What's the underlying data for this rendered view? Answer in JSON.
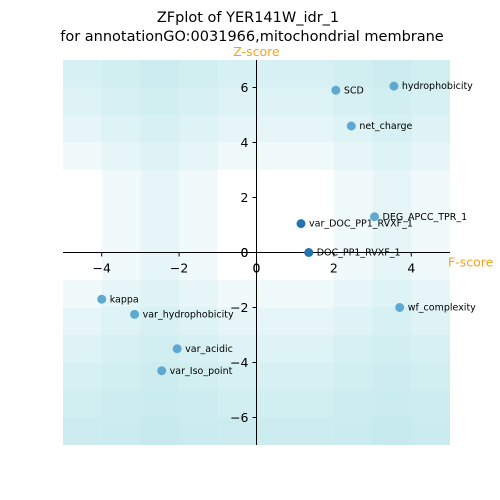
{
  "chart_data": {
    "type": "scatter",
    "title": "ZFplot of YER141W_idr_1",
    "subtitle": "for annotationGO:0031966,mitochondrial membrane",
    "xlabel": "F-score",
    "ylabel": "Z-score",
    "xlim": [
      -5,
      5
    ],
    "ylim": [
      -7,
      7
    ],
    "x_ticks": [
      -4,
      -2,
      0,
      2,
      4
    ],
    "y_ticks": [
      -6,
      -4,
      -2,
      0,
      2,
      4,
      6
    ],
    "grid": false,
    "colors": {
      "point": "#5fa8cf",
      "point_dark": "#2474b0",
      "band": "#bfe6ee",
      "axis_label": "#f5a21a"
    },
    "bands": [
      {
        "x": [
          -5,
          5
        ],
        "y": [
          3,
          7
        ]
      },
      {
        "x": [
          -5,
          5
        ],
        "y": [
          4,
          7
        ]
      },
      {
        "x": [
          -5,
          5
        ],
        "y": [
          5,
          7
        ]
      },
      {
        "x": [
          -5,
          5
        ],
        "y": [
          6,
          7
        ]
      },
      {
        "x": [
          -4,
          -1
        ],
        "y": [
          0,
          7
        ]
      },
      {
        "x": [
          -3,
          -2
        ],
        "y": [
          0,
          7
        ]
      },
      {
        "x": [
          2,
          5
        ],
        "y": [
          0,
          7
        ]
      },
      {
        "x": [
          3,
          4
        ],
        "y": [
          0,
          7
        ]
      },
      {
        "x": [
          -5,
          5
        ],
        "y": [
          -7,
          -1
        ]
      },
      {
        "x": [
          -5,
          5
        ],
        "y": [
          -7,
          -2
        ]
      },
      {
        "x": [
          -5,
          5
        ],
        "y": [
          -7,
          -3
        ]
      },
      {
        "x": [
          -5,
          5
        ],
        "y": [
          -7,
          -4
        ]
      },
      {
        "x": [
          -5,
          5
        ],
        "y": [
          -7,
          -5
        ]
      },
      {
        "x": [
          -5,
          5
        ],
        "y": [
          -7,
          -6
        ]
      },
      {
        "x": [
          -4,
          -1
        ],
        "y": [
          -7,
          0
        ]
      },
      {
        "x": [
          -3,
          -2
        ],
        "y": [
          -7,
          0
        ]
      },
      {
        "x": [
          2,
          5
        ],
        "y": [
          -7,
          0
        ]
      },
      {
        "x": [
          3,
          4
        ],
        "y": [
          -7,
          0
        ]
      }
    ],
    "points": [
      {
        "label": "SCD",
        "x": 2.05,
        "y": 5.9,
        "dark": false
      },
      {
        "label": "hydrophobicity",
        "x": 3.55,
        "y": 6.05,
        "dark": false
      },
      {
        "label": "net_charge",
        "x": 2.45,
        "y": 4.6,
        "dark": false
      },
      {
        "label": "DEG_APCC_TPR_1",
        "x": 3.05,
        "y": 1.3,
        "dark": false
      },
      {
        "label": "var_DOC_PP1_RVXF_1",
        "x": 1.15,
        "y": 1.05,
        "dark": true
      },
      {
        "label": "DOC_PP1_RVXF_1",
        "x": 1.35,
        "y": 0.0,
        "dark": true
      },
      {
        "label": "kappa",
        "x": -4.0,
        "y": -1.7,
        "dark": false
      },
      {
        "label": "var_hydrophobicity",
        "x": -3.15,
        "y": -2.25,
        "dark": false
      },
      {
        "label": "wf_complexity",
        "x": 3.7,
        "y": -2.0,
        "dark": false
      },
      {
        "label": "var_acidic",
        "x": -2.05,
        "y": -3.5,
        "dark": false
      },
      {
        "label": "var_Iso_point",
        "x": -2.45,
        "y": -4.3,
        "dark": false
      }
    ]
  }
}
